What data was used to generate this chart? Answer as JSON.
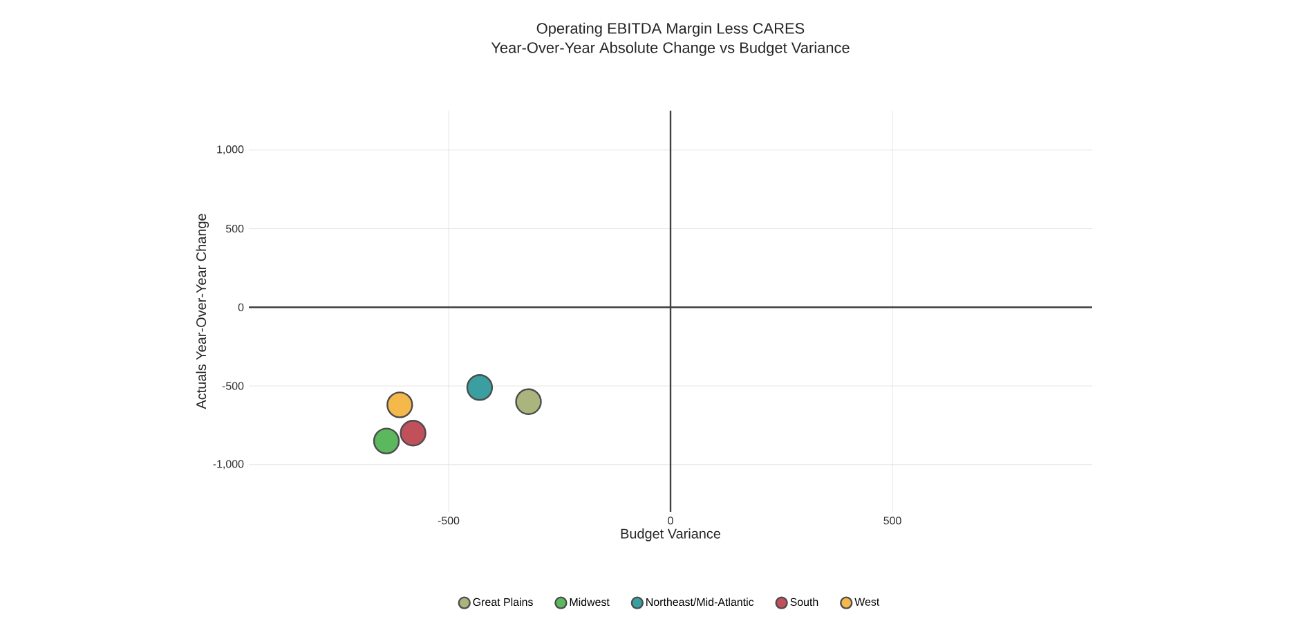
{
  "chart_data": {
    "type": "scatter",
    "title": "Operating EBITDA Margin Less CARES",
    "subtitle": "Year-Over-Year Absolute Change vs Budget Variance",
    "xlabel": "Budget Variance",
    "ylabel": "Actuals Year-Over-Year Change",
    "xlim": [
      -950,
      950
    ],
    "ylim": [
      -1300,
      1250
    ],
    "xticks": [
      -500,
      0,
      500
    ],
    "yticks": [
      {
        "value": -1000,
        "label": "-1,000"
      },
      {
        "value": -500,
        "label": "-500"
      },
      0,
      500,
      {
        "value": 1000,
        "label": "1,000"
      }
    ],
    "grid": true,
    "legend": "bottom",
    "marker": "circle",
    "series": [
      {
        "name": "Great Plains",
        "color": "#a9b57c",
        "x": [
          -320
        ],
        "values": [
          -600
        ]
      },
      {
        "name": "Midwest",
        "color": "#5cb85c",
        "x": [
          -640
        ],
        "values": [
          -850
        ]
      },
      {
        "name": "Northeast/Mid-Atlantic",
        "color": "#3a9fa0",
        "x": [
          -430
        ],
        "values": [
          -510
        ]
      },
      {
        "name": "South",
        "color": "#c0505a",
        "x": [
          -580
        ],
        "values": [
          -800
        ]
      },
      {
        "name": "West",
        "color": "#f5b84a",
        "x": [
          -610
        ],
        "values": [
          -620
        ]
      }
    ]
  }
}
